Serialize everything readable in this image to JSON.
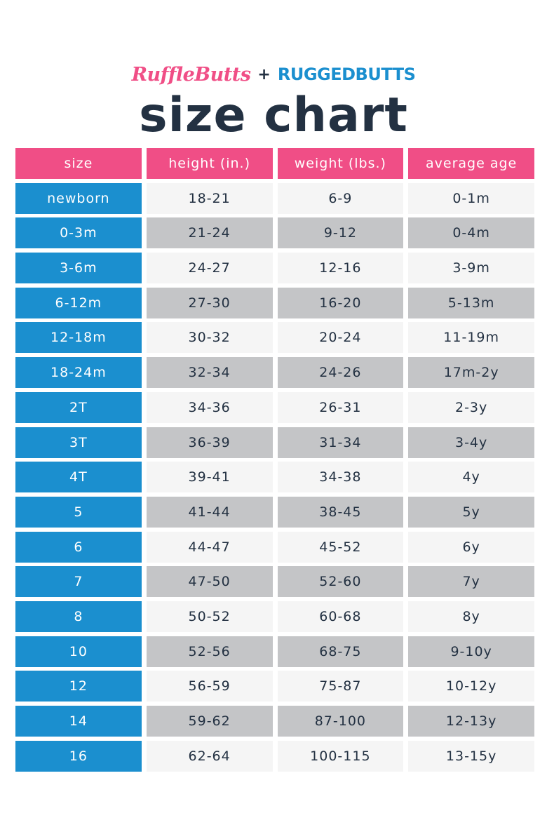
{
  "brand": {
    "ruffle": "RuffleButts",
    "plus": "+",
    "rugged": "RUGGEDBUTTS"
  },
  "title": "size chart",
  "colors": {
    "pink": "#f04e86",
    "blue": "#1b8fcf",
    "navy": "#233142",
    "light_row": "#f5f5f5",
    "dark_row": "#c4c5c7"
  },
  "table": {
    "headers": [
      "size",
      "height (in.)",
      "weight (lbs.)",
      "average age"
    ],
    "rows": [
      [
        "newborn",
        "18-21",
        "6-9",
        "0-1m"
      ],
      [
        "0-3m",
        "21-24",
        "9-12",
        "0-4m"
      ],
      [
        "3-6m",
        "24-27",
        "12-16",
        "3-9m"
      ],
      [
        "6-12m",
        "27-30",
        "16-20",
        "5-13m"
      ],
      [
        "12-18m",
        "30-32",
        "20-24",
        "11-19m"
      ],
      [
        "18-24m",
        "32-34",
        "24-26",
        "17m-2y"
      ],
      [
        "2T",
        "34-36",
        "26-31",
        "2-3y"
      ],
      [
        "3T",
        "36-39",
        "31-34",
        "3-4y"
      ],
      [
        "4T",
        "39-41",
        "34-38",
        "4y"
      ],
      [
        "5",
        "41-44",
        "38-45",
        "5y"
      ],
      [
        "6",
        "44-47",
        "45-52",
        "6y"
      ],
      [
        "7",
        "47-50",
        "52-60",
        "7y"
      ],
      [
        "8",
        "50-52",
        "60-68",
        "8y"
      ],
      [
        "10",
        "52-56",
        "68-75",
        "9-10y"
      ],
      [
        "12",
        "56-59",
        "75-87",
        "10-12y"
      ],
      [
        "14",
        "59-62",
        "87-100",
        "12-13y"
      ],
      [
        "16",
        "62-64",
        "100-115",
        "13-15y"
      ]
    ]
  }
}
